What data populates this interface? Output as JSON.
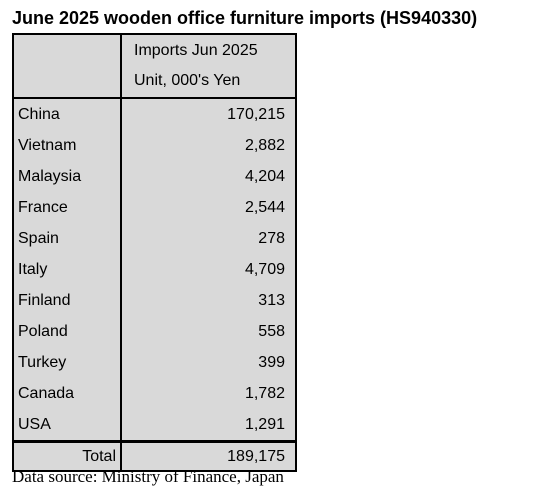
{
  "title": "June 2025 wooden office furniture imports (HS940330)",
  "table": {
    "header": [
      "Imports Jun 2025",
      "Unit, 000's Yen"
    ],
    "rows": [
      [
        "China",
        "170,215"
      ],
      [
        "Vietnam",
        "2,882"
      ],
      [
        "Malaysia",
        "4,204"
      ],
      [
        "France",
        "2,544"
      ],
      [
        "Spain",
        "278"
      ],
      [
        "Italy",
        "4,709"
      ],
      [
        "Finland",
        "313"
      ],
      [
        "Poland",
        "558"
      ],
      [
        "Turkey",
        "399"
      ],
      [
        "Canada",
        "1,782"
      ],
      [
        "USA",
        "1,291"
      ]
    ],
    "total": [
      "Total",
      "189,175"
    ]
  },
  "source": "Data source: Ministry of Finance, Japan"
}
